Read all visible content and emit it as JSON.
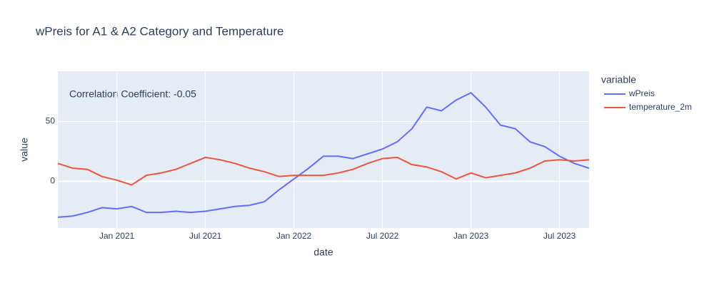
{
  "chart_data": {
    "type": "line",
    "title": "wPreis for A1 & A2 Category and Temperature",
    "x_label": "date",
    "y_label": "value",
    "annotation": "Correlation Coefficient: -0.05",
    "legend_title": "variable",
    "legend": "right",
    "grid": true,
    "x": [
      "2020-09",
      "2020-10",
      "2020-11",
      "2020-12",
      "2021-01",
      "2021-02",
      "2021-03",
      "2021-04",
      "2021-05",
      "2021-06",
      "2021-07",
      "2021-08",
      "2021-09",
      "2021-10",
      "2021-11",
      "2021-12",
      "2022-01",
      "2022-02",
      "2022-03",
      "2022-04",
      "2022-05",
      "2022-06",
      "2022-07",
      "2022-08",
      "2022-09",
      "2022-10",
      "2022-11",
      "2022-12",
      "2023-01",
      "2023-02",
      "2023-03",
      "2023-04",
      "2023-05",
      "2023-06",
      "2023-07",
      "2023-08",
      "2023-09"
    ],
    "xlim": [
      "2020-09",
      "2023-09"
    ],
    "xticks": [
      {
        "value": "2021-01",
        "label": "Jan 2021"
      },
      {
        "value": "2021-07",
        "label": "Jul 2021"
      },
      {
        "value": "2022-01",
        "label": "Jan 2022"
      },
      {
        "value": "2022-07",
        "label": "Jul 2022"
      },
      {
        "value": "2023-01",
        "label": "Jan 2023"
      },
      {
        "value": "2023-07",
        "label": "Jul 2023"
      }
    ],
    "ylim": [
      -39,
      92
    ],
    "yticks": [
      0,
      50
    ],
    "series": [
      {
        "name": "wPreis",
        "color": "#636efa",
        "values": [
          -30,
          -29,
          -26,
          -22,
          -23,
          -21,
          -26,
          -26,
          -25,
          -26,
          -25,
          -23,
          -21,
          -20,
          -17,
          -7,
          2,
          11,
          21,
          21,
          19,
          23,
          27,
          33,
          44,
          62,
          59,
          68,
          74,
          62,
          47,
          44,
          33,
          29,
          21,
          15,
          11
        ]
      },
      {
        "name": "temperature_2m",
        "color": "#ef553b",
        "values": [
          15,
          11,
          10,
          4,
          1,
          -3,
          5,
          7,
          10,
          15,
          20,
          18,
          15,
          11,
          8,
          4,
          5,
          5,
          5,
          7,
          10,
          15,
          19,
          20,
          14,
          12,
          8,
          2,
          7,
          3,
          5,
          7,
          11,
          17,
          18,
          17,
          18
        ]
      }
    ]
  }
}
